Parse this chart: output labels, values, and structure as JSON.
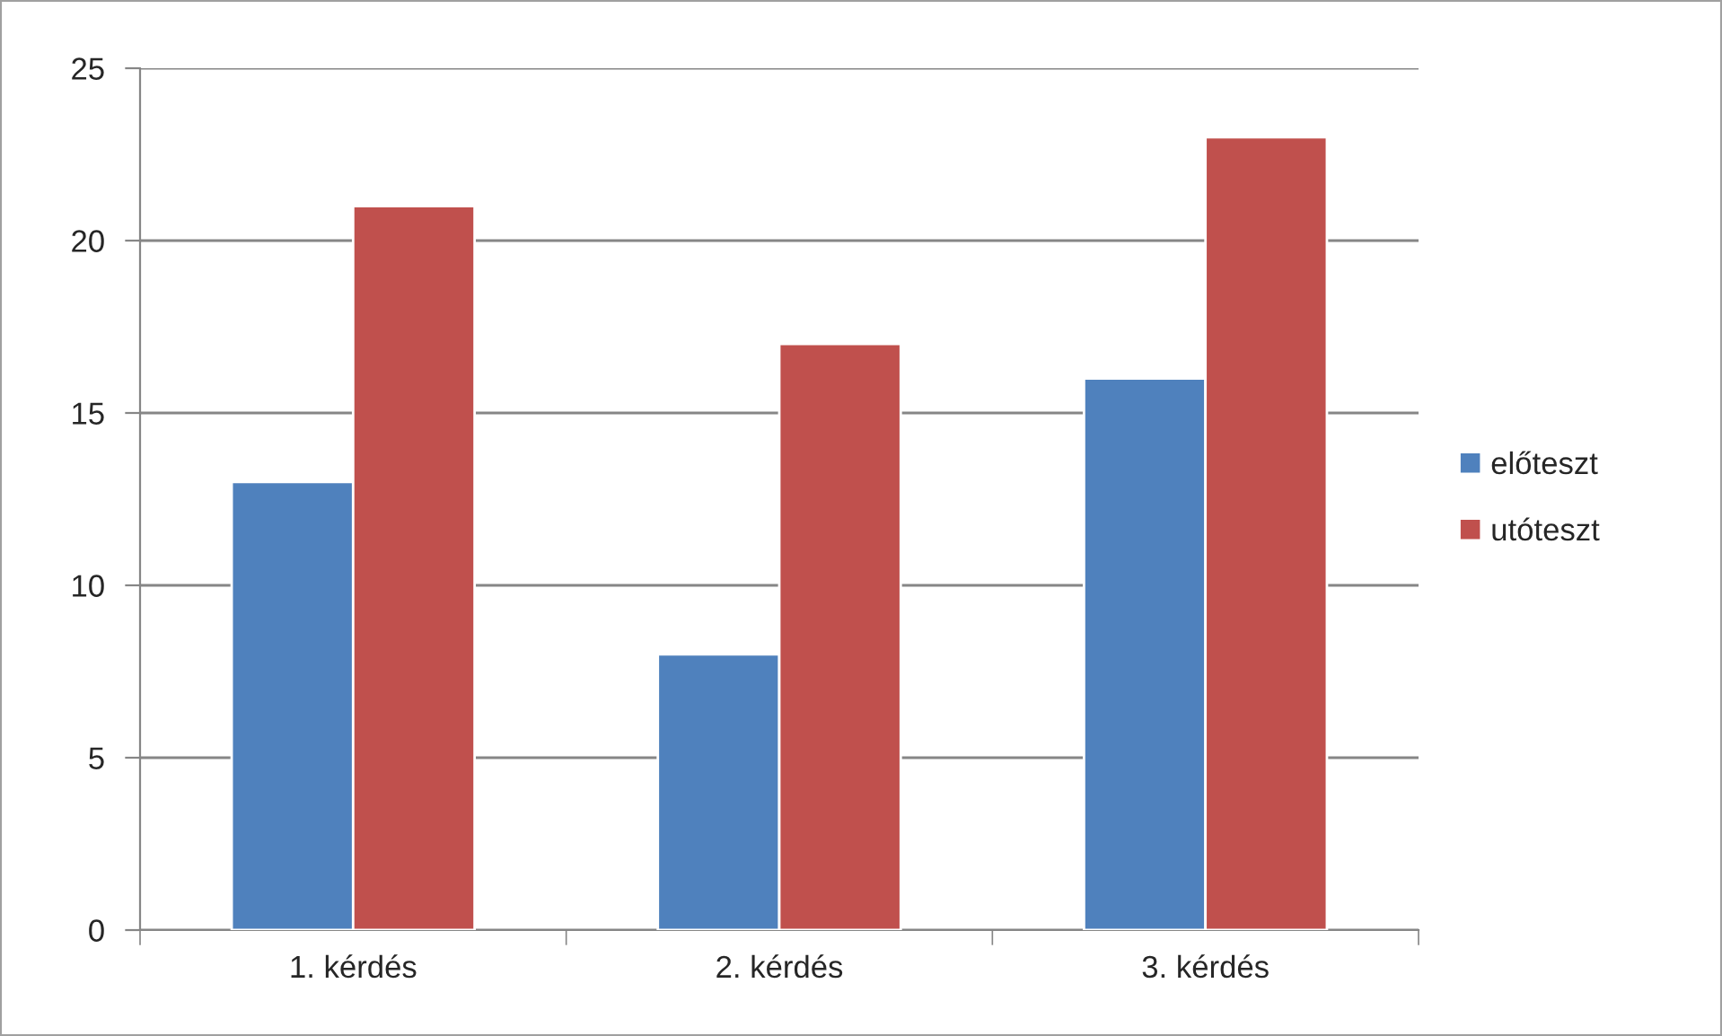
{
  "chart_data": {
    "type": "bar",
    "categories": [
      "1. kérdés",
      "2. kérdés",
      "3. kérdés"
    ],
    "series": [
      {
        "name": "előteszt",
        "color": "#4f81bd",
        "values": [
          13,
          8,
          16
        ]
      },
      {
        "name": "utóteszt",
        "color": "#c0504d",
        "values": [
          21,
          17,
          23
        ]
      }
    ],
    "ylim": [
      0,
      25
    ],
    "yticks": [
      0,
      5,
      10,
      15,
      20,
      25
    ],
    "grid": "y",
    "legend": "right"
  }
}
